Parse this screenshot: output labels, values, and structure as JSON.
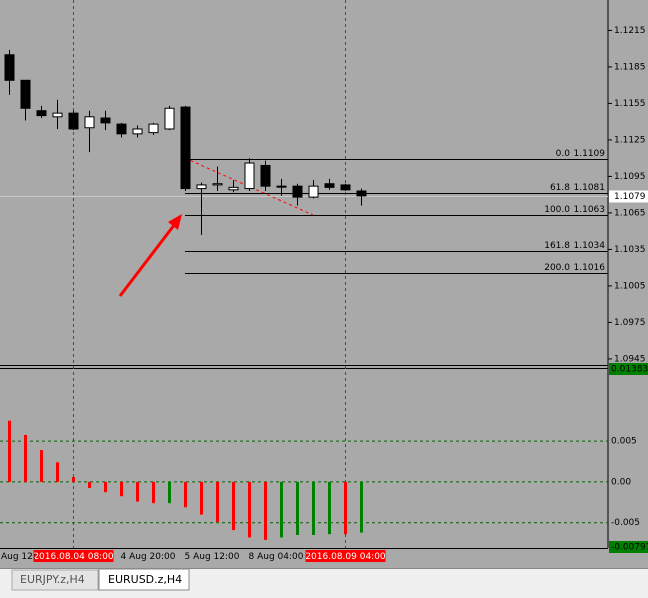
{
  "chart_data": [
    {
      "type": "candlestick",
      "categories": [
        "Aug 12:",
        null,
        null,
        null,
        null,
        null,
        null,
        "4 Aug 20:00",
        null,
        null,
        null,
        "5 Aug 12:00",
        null,
        null,
        null,
        "8 Aug 04:00",
        null,
        null,
        null,
        null,
        null,
        null,
        null
      ],
      "open": [
        1.1195,
        1.1174,
        1.1149,
        1.1144,
        1.1147,
        1.1135,
        1.1143,
        1.1138,
        1.113,
        1.1131,
        1.1134,
        1.1152,
        1.1085,
        1.1088,
        1.1084,
        1.1085,
        1.1104,
        1.1087,
        1.1087,
        1.1078,
        1.1089,
        1.1088,
        1.1083
      ],
      "high": [
        1.1199,
        1.1174,
        1.1153,
        1.1158,
        1.1149,
        1.1149,
        1.1149,
        1.1139,
        1.1137,
        1.1139,
        1.1153,
        1.1153,
        1.109,
        1.1103,
        1.1092,
        1.111,
        1.1108,
        1.1093,
        1.1089,
        1.1092,
        1.1093,
        1.1089,
        1.1085
      ],
      "low": [
        1.1162,
        1.1141,
        1.1143,
        1.1134,
        1.1133,
        1.1115,
        1.1133,
        1.1127,
        1.1127,
        1.1129,
        1.1133,
        1.1083,
        1.1047,
        1.1083,
        1.1082,
        1.1083,
        1.1083,
        1.1079,
        1.1071,
        1.1077,
        1.1084,
        1.1083,
        1.1071
      ],
      "close": [
        1.1174,
        1.1151,
        1.1145,
        1.1147,
        1.1134,
        1.1144,
        1.1139,
        1.113,
        1.1134,
        1.1138,
        1.1151,
        1.1085,
        1.1088,
        1.1089,
        1.1086,
        1.1106,
        1.1087,
        1.1087,
        1.1078,
        1.1087,
        1.1086,
        1.1084,
        1.1079
      ],
      "up_color": "#ffffff",
      "down_color": "#000000",
      "ylim": [
        1.094,
        1.124
      ],
      "yticks": [
        1.0945,
        1.0975,
        1.1005,
        1.1035,
        1.1065,
        1.1095,
        1.1125,
        1.1155,
        1.1185,
        1.1215
      ],
      "last_price": 1.1079,
      "fib_levels": [
        {
          "level": "0.0",
          "price": 1.1109
        },
        {
          "level": "61.8",
          "price": 1.1081
        },
        {
          "level": "100.0",
          "price": 1.1063
        },
        {
          "level": "161.8",
          "price": 1.1034
        },
        {
          "level": "200.0",
          "price": 1.1016
        }
      ],
      "vlines": [
        {
          "label": "2016.08.04 08:00",
          "index": 4
        },
        {
          "label": "2016.08.09 04:00",
          "index": 21
        }
      ]
    },
    {
      "type": "histogram-bar",
      "values": [
        0.0075,
        0.00575,
        0.0039,
        0.0024,
        0.0006,
        -0.00075,
        -0.00125,
        -0.00175,
        -0.0024,
        -0.0026,
        -0.0026,
        -0.0031,
        -0.004,
        -0.0049,
        -0.0059,
        -0.0068,
        -0.0071,
        -0.0068,
        -0.0065,
        -0.0065,
        -0.0064,
        -0.0064,
        -0.0062
      ],
      "colors": [
        "#ff0000",
        "#ff0000",
        "#ff0000",
        "#ff0000",
        "#ff0000",
        "#ff0000",
        "#ff0000",
        "#ff0000",
        "#ff0000",
        "#ff0000",
        "#008000",
        "#ff0000",
        "#ff0000",
        "#ff0000",
        "#ff0000",
        "#ff0000",
        "#ff0000",
        "#008000",
        "#008000",
        "#008000",
        "#008000",
        "#ff0000",
        "#008000"
      ],
      "ylim": [
        -0.00797,
        0.01383
      ],
      "yticks": [
        -0.00797,
        -0.005,
        {
          "value": 0,
          "label": "0.00"
        },
        0.005,
        0.01383
      ]
    }
  ],
  "tabs": [
    "EURJPY.z,H4",
    "EURUSD.z,H4"
  ]
}
